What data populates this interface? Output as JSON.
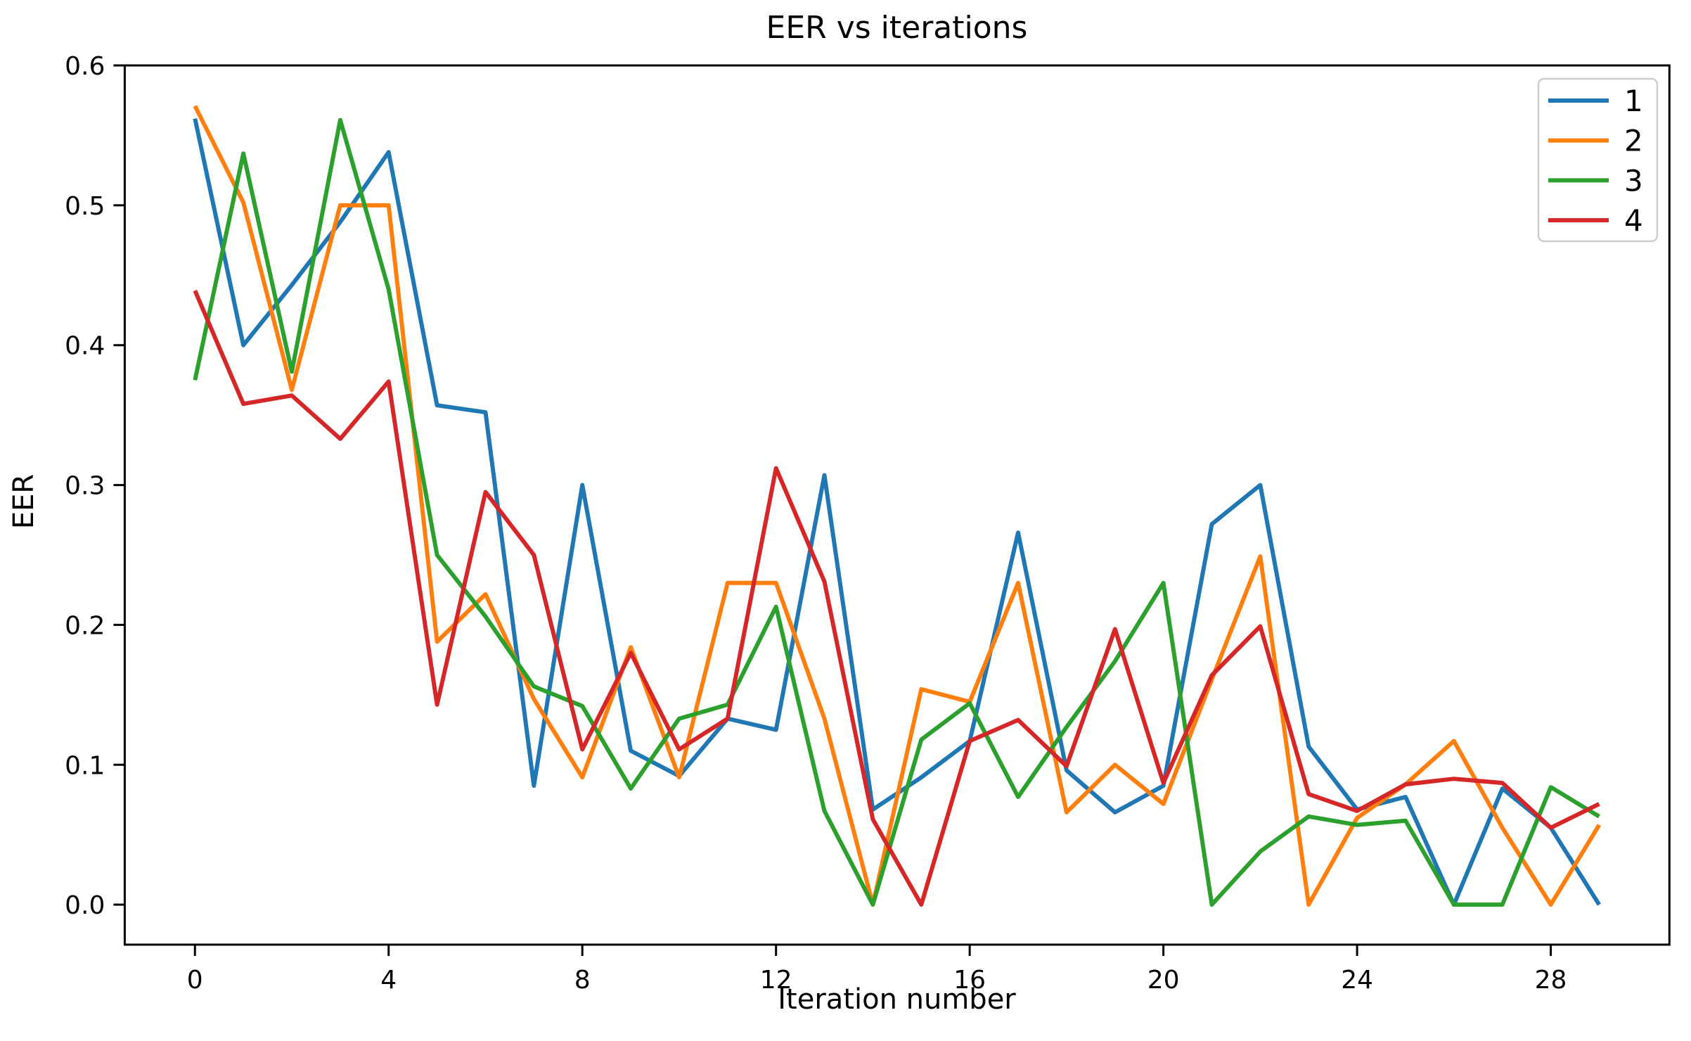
{
  "chart_data": {
    "type": "line",
    "title": "EER vs iterations",
    "xlabel": "Iteration number",
    "ylabel": "EER",
    "xlim": [
      -1.45,
      30.45
    ],
    "ylim": [
      -0.0286,
      0.6
    ],
    "grid": false,
    "legend_position": "upper right",
    "xticks": [
      "0",
      "4",
      "8",
      "12",
      "16",
      "20",
      "24",
      "28"
    ],
    "yticks": [
      "0.0",
      "0.1",
      "0.2",
      "0.3",
      "0.4",
      "0.5",
      "0.6"
    ],
    "x": [
      0,
      1,
      2,
      3,
      4,
      5,
      6,
      7,
      8,
      9,
      10,
      11,
      12,
      13,
      14,
      15,
      16,
      17,
      18,
      19,
      20,
      21,
      22,
      23,
      24,
      25,
      26,
      27,
      28,
      29
    ],
    "series": [
      {
        "name": "1",
        "color": "#1f77b4",
        "values": [
          0.562,
          0.4,
          0.443,
          0.488,
          0.538,
          0.357,
          0.352,
          0.085,
          0.3,
          0.11,
          0.092,
          0.133,
          0.125,
          0.307,
          0.068,
          0.091,
          0.117,
          0.266,
          0.096,
          0.066,
          0.085,
          0.272,
          0.3,
          0.113,
          0.068,
          0.077,
          0.0,
          0.083,
          0.055,
          0.0
        ]
      },
      {
        "name": "2",
        "color": "#ff7f0e",
        "values": [
          0.571,
          0.502,
          0.368,
          0.5,
          0.5,
          0.188,
          0.222,
          0.147,
          0.091,
          0.184,
          0.091,
          0.23,
          0.23,
          0.133,
          0.0,
          0.154,
          0.145,
          0.23,
          0.066,
          0.1,
          0.072,
          0.161,
          0.249,
          0.0,
          0.062,
          0.086,
          0.117,
          0.055,
          0.0,
          0.057
        ]
      },
      {
        "name": "3",
        "color": "#2ca02c",
        "values": [
          0.375,
          0.537,
          0.381,
          0.561,
          0.44,
          0.25,
          0.206,
          0.156,
          0.142,
          0.083,
          0.133,
          0.143,
          0.213,
          0.067,
          0.0,
          0.118,
          0.144,
          0.077,
          0.127,
          0.174,
          0.23,
          0.0,
          0.038,
          0.063,
          0.057,
          0.06,
          0.0,
          0.0,
          0.084,
          0.063
        ]
      },
      {
        "name": "4",
        "color": "#d62728",
        "values": [
          0.439,
          0.358,
          0.364,
          0.333,
          0.374,
          0.143,
          0.295,
          0.25,
          0.111,
          0.18,
          0.111,
          0.133,
          0.312,
          0.231,
          0.061,
          0.0,
          0.117,
          0.132,
          0.099,
          0.197,
          0.087,
          0.164,
          0.199,
          0.079,
          0.067,
          0.086,
          0.09,
          0.087,
          0.055,
          0.072
        ]
      }
    ]
  }
}
